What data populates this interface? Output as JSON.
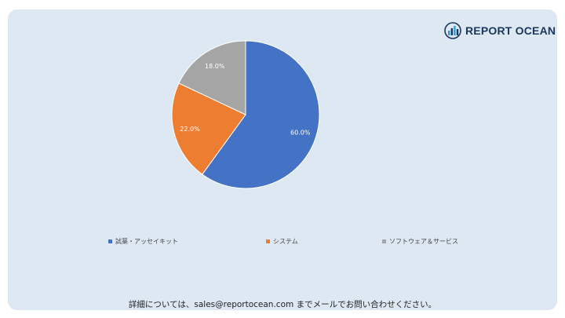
{
  "brand": {
    "name": "REPORT OCEAN",
    "icon": "bar-chart-logo-icon",
    "color": "#1a3760"
  },
  "chart_data": {
    "type": "pie",
    "categories": [
      "試薬・アッセイキット",
      "システム",
      "ソフトウェア＆サービス"
    ],
    "values": [
      60.0,
      22.0,
      18.0
    ],
    "labels": [
      "60.0%",
      "22.0%",
      "18.0%"
    ],
    "colors": [
      "#4472c4",
      "#ed7d31",
      "#a5a5a5"
    ],
    "title": "",
    "legend_position": "bottom"
  },
  "footer": {
    "text": "詳細については、sales@reportocean.com までメールでお問い合わせください。"
  }
}
